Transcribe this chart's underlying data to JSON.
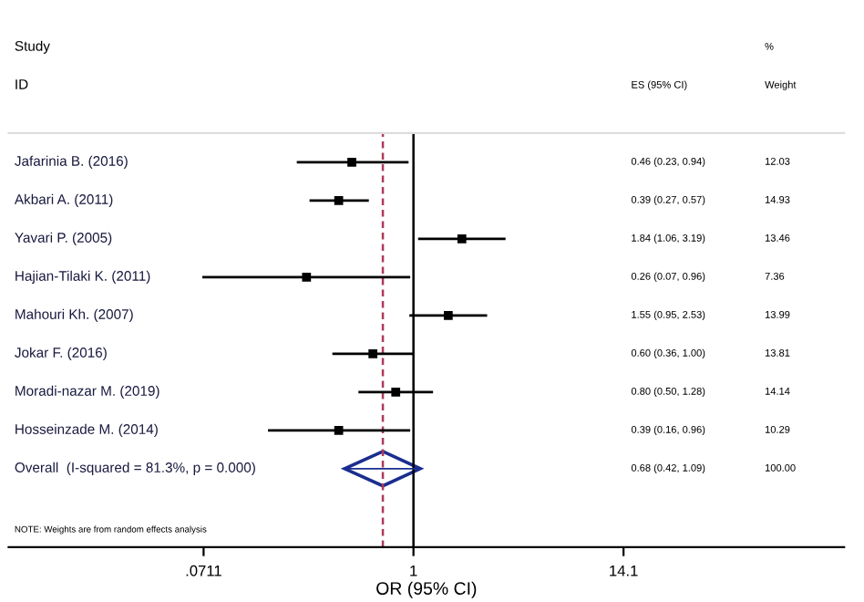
{
  "chart_data": {
    "type": "scatter",
    "orientation": "horizontal",
    "xlabel": "OR (95% CI)",
    "categories": [
      "Jafarinia B. (2016)",
      "Akbari A. (2011)",
      "Yavari P. (2005)",
      "Hajian-Tilaki K. (2011)",
      "Mahouri Kh. (2007)",
      "Jokar F. (2016)",
      "Moradi-nazar M. (2019)",
      "Hosseinzade M. (2014)",
      "Overall  (I-squared = 81.3%, p = 0.000)"
    ],
    "series": [
      {
        "color": "#000000",
        "marker": "square",
        "values": [
          0.46,
          0.39,
          1.84,
          0.26,
          1.55,
          0.6,
          0.8,
          0.39,
          null
        ],
        "errors": [
          [
            0.23,
            0.94
          ],
          [
            0.27,
            0.57
          ],
          [
            1.06,
            3.19
          ],
          [
            0.07,
            0.96
          ],
          [
            0.95,
            2.53
          ],
          [
            0.36,
            1.0
          ],
          [
            0.5,
            1.28
          ],
          [
            0.16,
            0.96
          ],
          null
        ]
      },
      {
        "color": "#1a2d8f",
        "marker": "diamond",
        "values": [
          null,
          null,
          null,
          null,
          null,
          null,
          null,
          null,
          0.68
        ],
        "errors": [
          null,
          null,
          null,
          null,
          null,
          null,
          null,
          null,
          [
            0.42,
            1.09
          ]
        ]
      }
    ],
    "xlim": [
      0.0061,
      227
    ],
    "xticks": [
      {
        "value": 0.0711,
        "label": ".0711"
      },
      1,
      14.1
    ],
    "log": "x",
    "ref_lines": [
      {
        "axis": "x",
        "value": 1,
        "color": "#000000",
        "line_style": "solid"
      },
      {
        "axis": "x",
        "value": 0.68,
        "color": "#b03a5a",
        "line_style": "dashed"
      }
    ],
    "grid": false,
    "annotations": [
      "Study",
      "ID",
      "ES (95% CI)",
      "%",
      "Weight",
      "0.46 (0.23, 0.94)",
      "0.39 (0.27, 0.57)",
      "1.84 (1.06, 3.19)",
      "0.26 (0.07, 0.96)",
      "1.55 (0.95, 2.53)",
      "0.60 (0.36, 1.00)",
      "0.80 (0.50, 1.28)",
      "0.39 (0.16, 0.96)",
      "0.68 (0.42, 1.09)",
      "12.03",
      "14.93",
      "13.46",
      "7.36",
      "13.99",
      "13.81",
      "14.14",
      "10.29",
      "100.00",
      "NOTE: Weights are from random effects analysis"
    ]
  }
}
